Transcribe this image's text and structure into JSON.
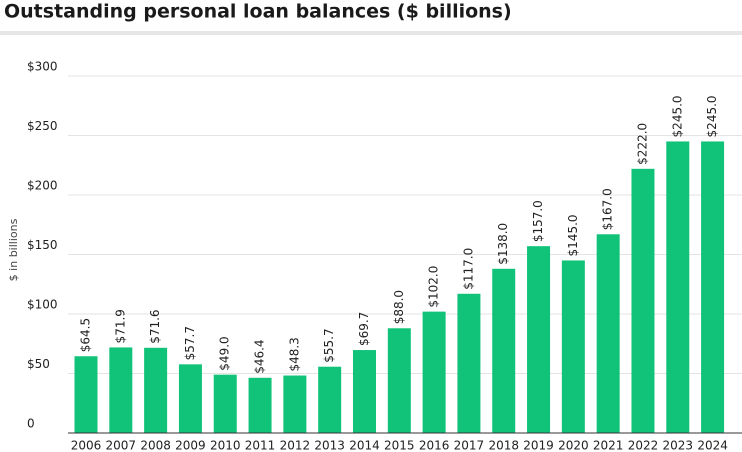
{
  "chart_data": {
    "type": "bar",
    "title": "Outstanding personal loan balances ($ billions)",
    "y_label": "$ in billions",
    "categories": [
      "2006",
      "2007",
      "2008",
      "2009",
      "2010",
      "2011",
      "2012",
      "2013",
      "2014",
      "2015",
      "2016",
      "2017",
      "2018",
      "2019",
      "2020",
      "2021",
      "2022",
      "2023",
      "2024"
    ],
    "values": [
      64.5,
      71.9,
      71.6,
      57.7,
      49.0,
      46.4,
      48.3,
      55.7,
      69.7,
      88.0,
      102.0,
      117.0,
      138.0,
      157.0,
      145.0,
      167.0,
      222.0,
      245.0,
      245.0
    ],
    "value_labels": [
      "$64.5",
      "$71.9",
      "$71.6",
      "$57.7",
      "$49.0",
      "$46.4",
      "$48.3",
      "$55.7",
      "$69.7",
      "$88.0",
      "$102.0",
      "$117.0",
      "$138.0",
      "$157.0",
      "$145.0",
      "$167.0",
      "$222.0",
      "$245.0",
      "$245.0"
    ],
    "color": "#10c379",
    "ylim": [
      0,
      300
    ],
    "yticks": [
      0,
      {
        "value": 50,
        "label": "$50"
      },
      {
        "value": 100,
        "label": "$100"
      },
      {
        "value": 150,
        "label": "$150"
      },
      {
        "value": 200,
        "label": "$200"
      },
      {
        "value": 250,
        "label": "$250"
      },
      {
        "value": 300,
        "label": "$300"
      }
    ],
    "grid": true
  }
}
